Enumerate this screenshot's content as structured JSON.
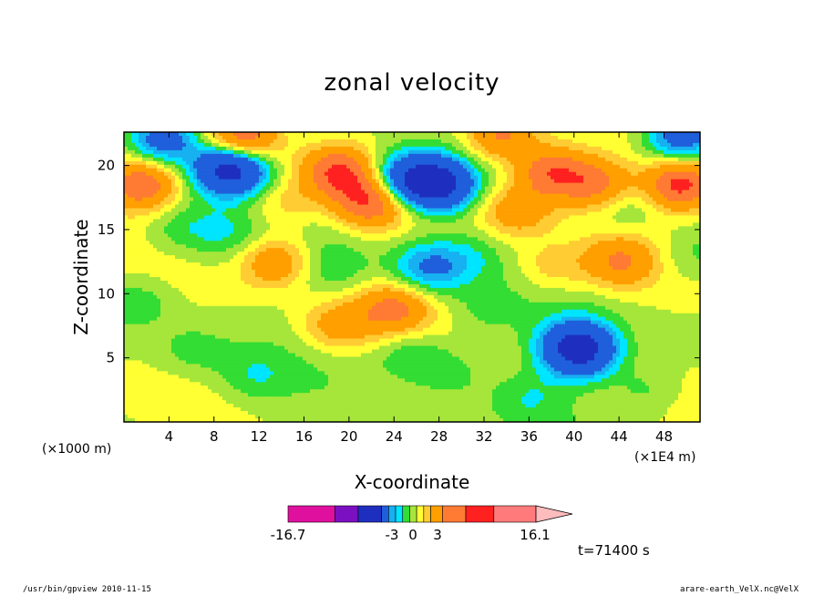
{
  "chart_data": {
    "type": "heatmap",
    "title": "zonal velocity",
    "xlabel": "X-coordinate",
    "ylabel": "Z-coordinate",
    "x_unit_left": "(×1000 m)",
    "x_unit_right": "(×1E4 m)",
    "x_ticks": [
      "4",
      "8",
      "12",
      "16",
      "20",
      "24",
      "28",
      "32",
      "36",
      "40",
      "44",
      "48"
    ],
    "x_tick_values": [
      4,
      8,
      12,
      16,
      20,
      24,
      28,
      32,
      36,
      40,
      44,
      48
    ],
    "y_ticks": [
      "5",
      "10",
      "15",
      "20"
    ],
    "y_tick_values": [
      5,
      10,
      15,
      20
    ],
    "xlim": [
      0,
      51.2
    ],
    "ylim": [
      0,
      22.6
    ],
    "colorbar": {
      "min_label": "-16.7",
      "max_label": "16.1",
      "mid_labels": [
        "-3",
        "0",
        "3"
      ],
      "levels": [
        -16.7,
        -12,
        -7,
        -3,
        -2,
        -1,
        0,
        1,
        2,
        3,
        5,
        7,
        12,
        16.1
      ],
      "colors": [
        "#e0109f",
        "#7b10c0",
        "#1e2fbf",
        "#1f5fdc",
        "#17b0f0",
        "#00e5ff",
        "#33dd33",
        "#a6e63a",
        "#ffff33",
        "#ffcc33",
        "#ff9f00",
        "#ff7a33",
        "#ff2020",
        "#ff7b7b",
        "#ffbcbc"
      ]
    },
    "field_features": [
      {
        "x": 9.5,
        "z": 19.8,
        "value": -10.5
      },
      {
        "x": 3.5,
        "z": 22.0,
        "value": -6.0
      },
      {
        "x": 28.0,
        "z": 18.5,
        "value": -9.5
      },
      {
        "x": 25.0,
        "z": 19.0,
        "value": -6.5
      },
      {
        "x": 27.0,
        "z": 12.0,
        "value": -4.0
      },
      {
        "x": 40.5,
        "z": 5.5,
        "value": -8.0
      },
      {
        "x": 40.0,
        "z": 6.2,
        "value": -2.5
      },
      {
        "x": 49.5,
        "z": 22.2,
        "value": -6.0
      },
      {
        "x": 9.0,
        "z": 14.5,
        "value": -1.5
      },
      {
        "x": 18.5,
        "z": 12.0,
        "value": -1.5
      },
      {
        "x": 1.5,
        "z": 9.5,
        "value": -1.5
      },
      {
        "x": 50.5,
        "z": 13.0,
        "value": -1.5
      },
      {
        "x": 44.5,
        "z": 16.8,
        "value": -1.5
      },
      {
        "x": 30.5,
        "z": 13.0,
        "value": -1.5
      },
      {
        "x": 25.5,
        "z": 5.5,
        "value": -2.0
      },
      {
        "x": 10.5,
        "z": 22.0,
        "value": 7.0
      },
      {
        "x": 1.5,
        "z": 18.5,
        "value": 6.0
      },
      {
        "x": 49.5,
        "z": 18.5,
        "value": 7.0
      },
      {
        "x": 38.0,
        "z": 19.5,
        "value": 6.0
      },
      {
        "x": 42.0,
        "z": 18.5,
        "value": 5.0
      },
      {
        "x": 33.5,
        "z": 22.3,
        "value": 5.0
      },
      {
        "x": 35.0,
        "z": 16.5,
        "value": 3.5
      },
      {
        "x": 13.5,
        "z": 12.5,
        "value": 4.0
      },
      {
        "x": 24.0,
        "z": 8.8,
        "value": 4.5
      },
      {
        "x": 19.0,
        "z": 7.5,
        "value": 3.0
      },
      {
        "x": 22.0,
        "z": 17.2,
        "value": 6.0
      },
      {
        "x": 19.0,
        "z": 19.5,
        "value": 6.0
      },
      {
        "x": 14.0,
        "z": 17.0,
        "value": 2.0
      },
      {
        "x": 44.0,
        "z": 12.5,
        "value": 4.0
      },
      {
        "x": 38.0,
        "z": 12.0,
        "value": 2.0
      },
      {
        "x": 36.0,
        "z": 2.0,
        "value": -1.5
      },
      {
        "x": 29.0,
        "z": 4.0,
        "value": -1.5
      },
      {
        "x": 46.5,
        "z": 2.5,
        "value": -1.5
      },
      {
        "x": 11.5,
        "z": 3.5,
        "value": -1.5
      },
      {
        "x": 6.0,
        "z": 5.5,
        "value": -1.2
      },
      {
        "x": 32.0,
        "z": 8.5,
        "value": -1.0
      },
      {
        "x": 5.0,
        "z": 15.0,
        "value": -1.5
      }
    ],
    "grid": false,
    "legend": "colorbar-bottom"
  },
  "annotations": {
    "time": "t=71400 s",
    "footer_left": "/usr/bin/gpview  2010-11-15",
    "footer_right": "arare-earth_VelX.nc@VelX"
  }
}
